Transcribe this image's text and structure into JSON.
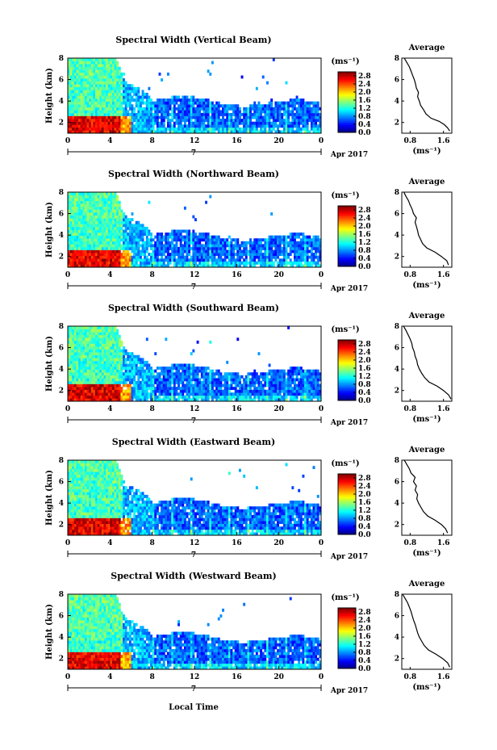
{
  "figure": {
    "date_label": "Apr 2017",
    "day_label": "7",
    "x_label": "Local Time",
    "y_label": "Height (km)",
    "colorbar_unit": "(ms⁻¹)",
    "average_title": "Average",
    "average_xlabel": "(ms⁻¹)"
  },
  "palette": [
    "#00007f",
    "#0000ff",
    "#007fff",
    "#00ffff",
    "#7fff7f",
    "#ffff00",
    "#ff7f00",
    "#ff0000",
    "#7f0000"
  ],
  "chart_data": [
    {
      "type": "heatmap",
      "title": "Spectral Width (Vertical Beam)",
      "xlabel": "",
      "ylabel": "Height (km)",
      "x_ticks": [
        "0",
        "4",
        "8",
        "12",
        "16",
        "20",
        "0"
      ],
      "y_ticks": [
        "2",
        "4",
        "6",
        "8"
      ],
      "xlim": [
        0,
        24
      ],
      "ylim": [
        1,
        8
      ],
      "colorbar": {
        "unit": "(ms⁻¹)",
        "ticks": [
          "0.0",
          "0.4",
          "0.8",
          "1.2",
          "1.6",
          "2.0",
          "2.4",
          "2.8"
        ],
        "range": [
          0,
          3
        ]
      },
      "average": {
        "title": "Average",
        "xlabel": "(ms⁻¹)",
        "x_ticks": [
          "0.8",
          "1.6"
        ],
        "xlim": [
          0.6,
          1.8
        ],
        "profile": [
          [
            1.75,
            1.2
          ],
          [
            1.7,
            1.5
          ],
          [
            1.62,
            1.8
          ],
          [
            1.5,
            2.1
          ],
          [
            1.3,
            2.4
          ],
          [
            1.18,
            2.8
          ],
          [
            1.12,
            3.2
          ],
          [
            1.05,
            3.6
          ],
          [
            1.02,
            4.0
          ],
          [
            0.98,
            4.4
          ],
          [
            1.0,
            4.8
          ],
          [
            0.95,
            5.2
          ],
          [
            0.93,
            5.6
          ],
          [
            0.9,
            6.0
          ],
          [
            0.86,
            6.4
          ],
          [
            0.82,
            6.8
          ],
          [
            0.78,
            7.2
          ],
          [
            0.72,
            7.6
          ],
          [
            0.66,
            8.0
          ]
        ]
      }
    },
    {
      "type": "heatmap",
      "title": "Spectral Width (Northward Beam)",
      "xlabel": "",
      "ylabel": "Height (km)",
      "x_ticks": [
        "0",
        "4",
        "8",
        "12",
        "16",
        "20",
        "0"
      ],
      "y_ticks": [
        "2",
        "4",
        "6",
        "8"
      ],
      "xlim": [
        0,
        24
      ],
      "ylim": [
        1,
        8
      ],
      "colorbar": {
        "unit": "(ms⁻¹)",
        "ticks": [
          "0.0",
          "0.4",
          "0.8",
          "1.2",
          "1.6",
          "2.0",
          "2.4",
          "2.8"
        ],
        "range": [
          0,
          3
        ]
      },
      "average": {
        "title": "Average",
        "xlabel": "(ms⁻¹)",
        "x_ticks": [
          "0.8",
          "1.6"
        ],
        "xlim": [
          0.6,
          1.8
        ],
        "profile": [
          [
            1.72,
            1.2
          ],
          [
            1.68,
            1.6
          ],
          [
            1.55,
            2.0
          ],
          [
            1.4,
            2.4
          ],
          [
            1.2,
            2.8
          ],
          [
            1.1,
            3.2
          ],
          [
            1.05,
            3.6
          ],
          [
            1.0,
            4.0
          ],
          [
            0.98,
            4.4
          ],
          [
            0.95,
            4.8
          ],
          [
            0.92,
            5.2
          ],
          [
            0.95,
            5.6
          ],
          [
            0.88,
            6.0
          ],
          [
            0.85,
            6.4
          ],
          [
            0.8,
            6.8
          ],
          [
            0.76,
            7.2
          ],
          [
            0.7,
            7.6
          ],
          [
            0.65,
            8.0
          ]
        ]
      }
    },
    {
      "type": "heatmap",
      "title": "Spectral Width (Southward Beam)",
      "xlabel": "",
      "ylabel": "Height (km)",
      "x_ticks": [
        "0",
        "4",
        "8",
        "12",
        "16",
        "20",
        "0"
      ],
      "y_ticks": [
        "2",
        "4",
        "6",
        "8"
      ],
      "xlim": [
        0,
        24
      ],
      "ylim": [
        1,
        8
      ],
      "colorbar": {
        "unit": "(ms⁻¹)",
        "ticks": [
          "0.0",
          "0.4",
          "0.8",
          "1.2",
          "1.6",
          "2.0",
          "2.4",
          "2.8"
        ],
        "range": [
          0,
          3
        ]
      },
      "average": {
        "title": "Average",
        "xlabel": "(ms⁻¹)",
        "x_ticks": [
          "0.8",
          "1.6"
        ],
        "xlim": [
          0.6,
          1.8
        ],
        "profile": [
          [
            1.78,
            1.2
          ],
          [
            1.72,
            1.6
          ],
          [
            1.6,
            2.0
          ],
          [
            1.45,
            2.4
          ],
          [
            1.25,
            2.8
          ],
          [
            1.15,
            3.2
          ],
          [
            1.08,
            3.6
          ],
          [
            1.02,
            4.0
          ],
          [
            0.98,
            4.4
          ],
          [
            0.96,
            4.8
          ],
          [
            0.92,
            5.2
          ],
          [
            0.9,
            5.6
          ],
          [
            0.86,
            6.0
          ],
          [
            0.84,
            6.4
          ],
          [
            0.8,
            6.8
          ],
          [
            0.75,
            7.2
          ],
          [
            0.7,
            7.6
          ],
          [
            0.64,
            8.0
          ]
        ]
      }
    },
    {
      "type": "heatmap",
      "title": "Spectral Width (Eastward Beam)",
      "xlabel": "",
      "ylabel": "Height (km)",
      "x_ticks": [
        "0",
        "4",
        "8",
        "12",
        "16",
        "20",
        "0"
      ],
      "y_ticks": [
        "2",
        "4",
        "6",
        "8"
      ],
      "xlim": [
        0,
        24
      ],
      "ylim": [
        1,
        8
      ],
      "colorbar": {
        "unit": "(ms⁻¹)",
        "ticks": [
          "0.0",
          "0.4",
          "0.8",
          "1.2",
          "1.6",
          "2.0",
          "2.4",
          "2.8"
        ],
        "range": [
          0,
          3
        ]
      },
      "average": {
        "title": "Average",
        "xlabel": "(ms⁻¹)",
        "x_ticks": [
          "0.8",
          "1.6"
        ],
        "xlim": [
          0.6,
          1.8
        ],
        "profile": [
          [
            1.7,
            1.2
          ],
          [
            1.65,
            1.6
          ],
          [
            1.55,
            2.0
          ],
          [
            1.4,
            2.4
          ],
          [
            1.22,
            2.8
          ],
          [
            1.12,
            3.2
          ],
          [
            1.06,
            3.6
          ],
          [
            1.0,
            4.0
          ],
          [
            0.96,
            4.4
          ],
          [
            0.98,
            4.8
          ],
          [
            0.92,
            5.2
          ],
          [
            0.95,
            5.6
          ],
          [
            0.88,
            6.0
          ],
          [
            0.92,
            6.4
          ],
          [
            0.82,
            6.8
          ],
          [
            0.78,
            7.2
          ],
          [
            0.72,
            7.6
          ],
          [
            0.66,
            8.0
          ]
        ]
      }
    },
    {
      "type": "heatmap",
      "title": "Spectral Width (Westward Beam)",
      "xlabel": "Local Time",
      "ylabel": "Height (km)",
      "x_ticks": [
        "0",
        "4",
        "8",
        "12",
        "16",
        "20",
        "0"
      ],
      "y_ticks": [
        "2",
        "4",
        "6",
        "8"
      ],
      "xlim": [
        0,
        24
      ],
      "ylim": [
        1,
        8
      ],
      "colorbar": {
        "unit": "(ms⁻¹)",
        "ticks": [
          "0.0",
          "0.4",
          "0.8",
          "1.2",
          "1.6",
          "2.0",
          "2.4",
          "2.8"
        ],
        "range": [
          0,
          3
        ]
      },
      "average": {
        "title": "Average",
        "xlabel": "(ms⁻¹)",
        "x_ticks": [
          "0.8",
          "1.6"
        ],
        "xlim": [
          0.6,
          1.8
        ],
        "profile": [
          [
            1.75,
            1.2
          ],
          [
            1.7,
            1.6
          ],
          [
            1.58,
            2.0
          ],
          [
            1.42,
            2.4
          ],
          [
            1.24,
            2.8
          ],
          [
            1.14,
            3.2
          ],
          [
            1.08,
            3.6
          ],
          [
            1.02,
            4.0
          ],
          [
            0.98,
            4.4
          ],
          [
            0.95,
            4.8
          ],
          [
            0.92,
            5.2
          ],
          [
            0.88,
            5.6
          ],
          [
            0.85,
            6.0
          ],
          [
            0.82,
            6.4
          ],
          [
            0.78,
            6.8
          ],
          [
            0.74,
            7.2
          ],
          [
            0.68,
            7.6
          ],
          [
            0.62,
            8.0
          ]
        ]
      }
    }
  ]
}
